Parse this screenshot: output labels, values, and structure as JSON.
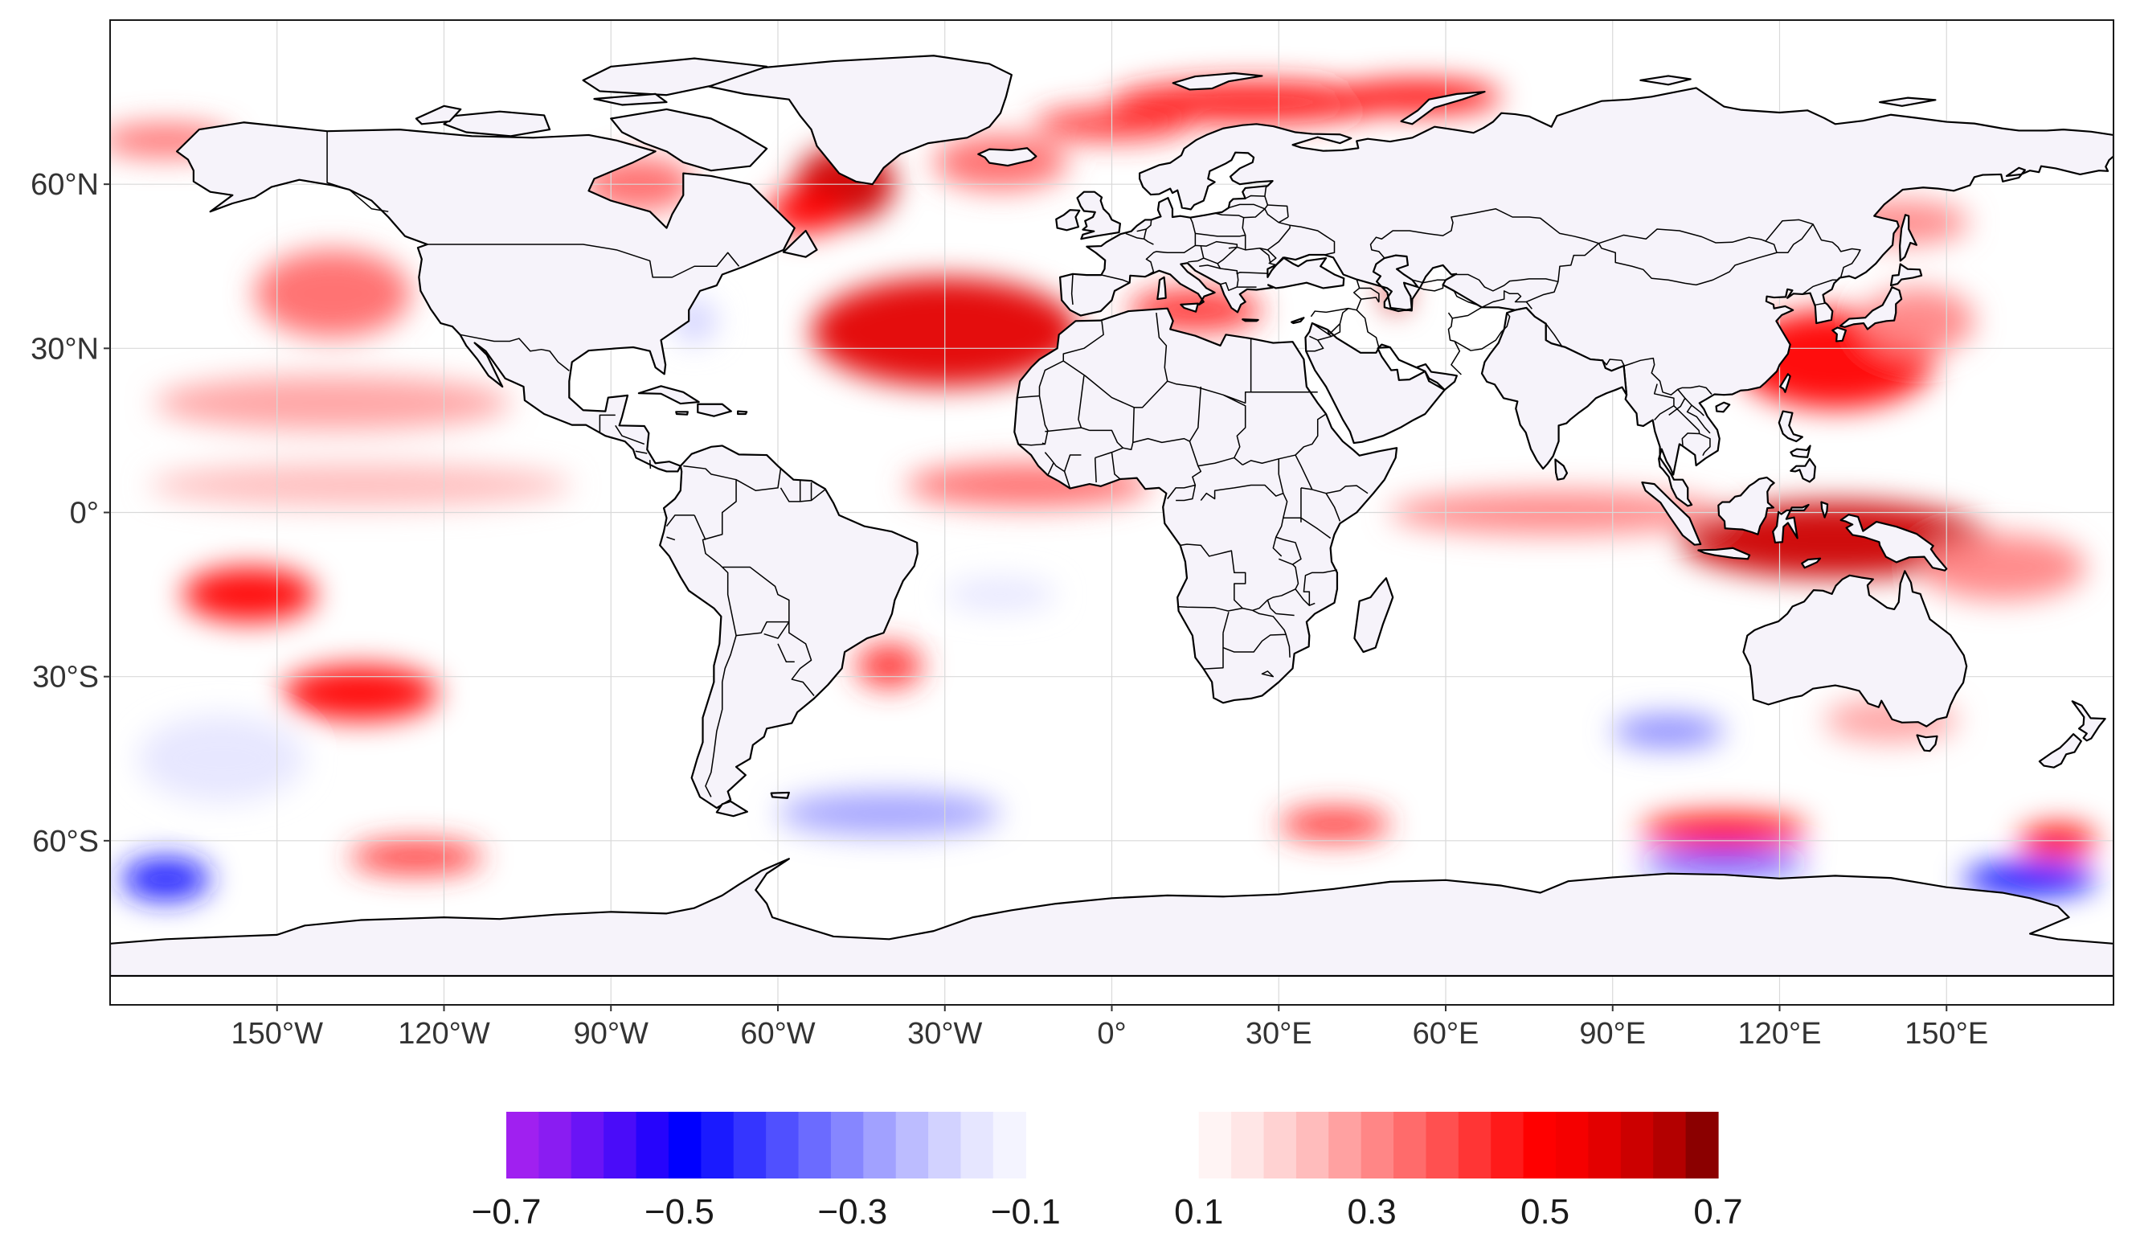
{
  "map": {
    "projection": "equirectangular",
    "lon_range": [
      -180,
      180
    ],
    "lat_range": [
      -90,
      90
    ],
    "land_color": "#f6f3fa",
    "ocean_color": "#ffffff",
    "border_color": "#000000",
    "grid_color": "#d9d9d9"
  },
  "axes": {
    "y_ticks": [
      {
        "lat": 60,
        "label": "60°N"
      },
      {
        "lat": 30,
        "label": "30°N"
      },
      {
        "lat": 0,
        "label": "0°"
      },
      {
        "lat": -30,
        "label": "30°S"
      },
      {
        "lat": -60,
        "label": "60°S"
      }
    ],
    "x_ticks": [
      {
        "lon": -150,
        "label": "150°W"
      },
      {
        "lon": -120,
        "label": "120°W"
      },
      {
        "lon": -90,
        "label": "90°W"
      },
      {
        "lon": -60,
        "label": "60°W"
      },
      {
        "lon": -30,
        "label": "30°W"
      },
      {
        "lon": 0,
        "label": "0°"
      },
      {
        "lon": 30,
        "label": "30°E"
      },
      {
        "lon": 60,
        "label": "60°E"
      },
      {
        "lon": 90,
        "label": "90°E"
      },
      {
        "lon": 120,
        "label": "120°E"
      },
      {
        "lon": 150,
        "label": "150°E"
      }
    ]
  },
  "colorbar": {
    "range": [
      -0.7,
      0.7
    ],
    "gap": [
      -0.1,
      0.1
    ],
    "ticks": [
      {
        "value": -0.7,
        "label": "−0.7"
      },
      {
        "value": -0.5,
        "label": "−0.5"
      },
      {
        "value": -0.3,
        "label": "−0.3"
      },
      {
        "value": -0.1,
        "label": "−0.1"
      },
      {
        "value": 0.1,
        "label": "0.1"
      },
      {
        "value": 0.3,
        "label": "0.3"
      },
      {
        "value": 0.5,
        "label": "0.5"
      },
      {
        "value": 0.7,
        "label": "0.7"
      }
    ],
    "negative_colors": [
      "#a020f0",
      "#8a1cf2",
      "#6a14f6",
      "#4a0cf9",
      "#2604fc",
      "#0000ff",
      "#1a1aff",
      "#3535ff",
      "#5050ff",
      "#6b6bff",
      "#8686ff",
      "#a1a1ff",
      "#bcbcff",
      "#d2d2ff",
      "#e6e6ff",
      "#f4f4ff"
    ],
    "positive_colors": [
      "#fff4f4",
      "#ffe6e6",
      "#ffd2d2",
      "#ffbcbc",
      "#ffa1a1",
      "#ff8686",
      "#ff6b6b",
      "#ff5050",
      "#ff3535",
      "#ff1a1a",
      "#ff0000",
      "#f50000",
      "#e30000",
      "#cc0000",
      "#b30000",
      "#8b0000"
    ]
  },
  "anomalies": [
    {
      "lon": -30,
      "lat": 33,
      "rx": 24,
      "ry": 10,
      "value": 0.55
    },
    {
      "lon": -48,
      "lat": 60,
      "rx": 9,
      "ry": 7,
      "value": 0.6
    },
    {
      "lon": -55,
      "lat": 55,
      "rx": 7,
      "ry": 4,
      "value": 0.5
    },
    {
      "lon": -20,
      "lat": 64,
      "rx": 12,
      "ry": 5,
      "value": 0.35
    },
    {
      "lon": 0,
      "lat": 71,
      "rx": 14,
      "ry": 3,
      "value": 0.4
    },
    {
      "lon": 25,
      "lat": 75,
      "rx": 25,
      "ry": 4,
      "value": 0.45
    },
    {
      "lon": 55,
      "lat": 76,
      "rx": 15,
      "ry": 3,
      "value": 0.5
    },
    {
      "lon": -85,
      "lat": 60,
      "rx": 10,
      "ry": 5,
      "value": 0.35
    },
    {
      "lon": -140,
      "lat": 40,
      "rx": 14,
      "ry": 8,
      "value": 0.35
    },
    {
      "lon": -140,
      "lat": 20,
      "rx": 32,
      "ry": 5,
      "value": 0.25
    },
    {
      "lon": -135,
      "lat": 5,
      "rx": 38,
      "ry": 4,
      "value": 0.22
    },
    {
      "lon": -155,
      "lat": -15,
      "rx": 12,
      "ry": 5,
      "value": 0.5
    },
    {
      "lon": -135,
      "lat": -33,
      "rx": 14,
      "ry": 5,
      "value": 0.5
    },
    {
      "lon": -125,
      "lat": -63,
      "rx": 12,
      "ry": 3,
      "value": 0.4
    },
    {
      "lon": -15,
      "lat": 5,
      "rx": 22,
      "ry": 4,
      "value": 0.35
    },
    {
      "lon": 15,
      "lat": 37,
      "rx": 12,
      "ry": 4,
      "value": 0.4
    },
    {
      "lon": 51,
      "lat": 40,
      "rx": 2,
      "ry": 3,
      "value": 0.6
    },
    {
      "lon": 130,
      "lat": 28,
      "rx": 18,
      "ry": 9,
      "value": 0.5
    },
    {
      "lon": 145,
      "lat": 35,
      "rx": 10,
      "ry": 6,
      "value": 0.3
    },
    {
      "lon": 142,
      "lat": 53,
      "rx": 12,
      "ry": 4,
      "value": 0.3
    },
    {
      "lon": 130,
      "lat": -5,
      "rx": 28,
      "ry": 7,
      "value": 0.6
    },
    {
      "lon": 80,
      "lat": 0,
      "rx": 30,
      "ry": 4,
      "value": 0.3
    },
    {
      "lon": 160,
      "lat": -10,
      "rx": 15,
      "ry": 6,
      "value": 0.3
    },
    {
      "lon": 110,
      "lat": -58,
      "rx": 15,
      "ry": 3,
      "value": 0.5
    },
    {
      "lon": 40,
      "lat": -57,
      "rx": 10,
      "ry": 3,
      "value": 0.4
    },
    {
      "lon": 170,
      "lat": -60,
      "rx": 7,
      "ry": 3,
      "value": 0.5
    },
    {
      "lon": -40,
      "lat": -28,
      "rx": 6,
      "ry": 4,
      "value": 0.4
    },
    {
      "lon": 140,
      "lat": -38,
      "rx": 12,
      "ry": 4,
      "value": 0.25
    },
    {
      "lon": -170,
      "lat": 68,
      "rx": 12,
      "ry": 3,
      "value": 0.35
    },
    {
      "lon": -170,
      "lat": -67,
      "rx": 8,
      "ry": 4,
      "value": -0.45
    },
    {
      "lon": -160,
      "lat": -45,
      "rx": 15,
      "ry": 8,
      "value": -0.15
    },
    {
      "lon": -40,
      "lat": -55,
      "rx": 20,
      "ry": 4,
      "value": -0.25
    },
    {
      "lon": 100,
      "lat": -40,
      "rx": 10,
      "ry": 3,
      "value": -0.3
    },
    {
      "lon": 110,
      "lat": -64,
      "rx": 15,
      "ry": 2,
      "value": -0.45
    },
    {
      "lon": 165,
      "lat": -67,
      "rx": 12,
      "ry": 3,
      "value": -0.5
    },
    {
      "lon": -75,
      "lat": 35,
      "rx": 4,
      "ry": 4,
      "value": -0.2
    },
    {
      "lon": -20,
      "lat": -15,
      "rx": 10,
      "ry": 3,
      "value": -0.15
    }
  ]
}
